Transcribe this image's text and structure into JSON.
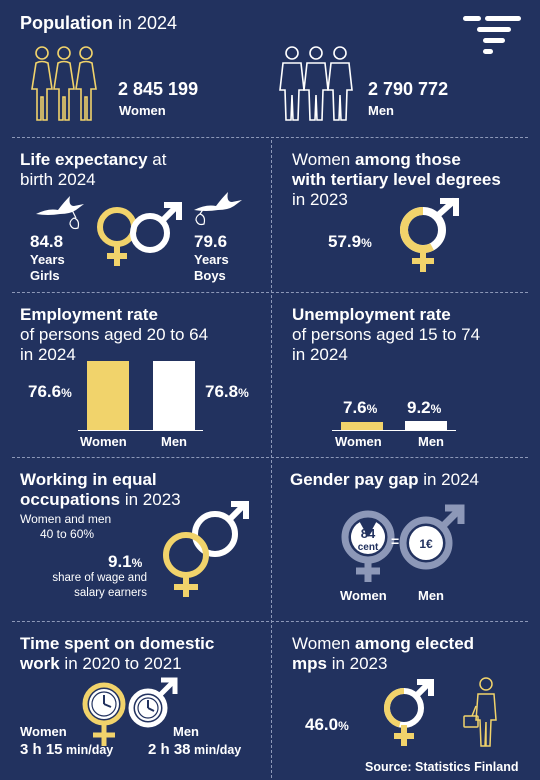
{
  "colors": {
    "background": "#22325f",
    "yellow": "#f1d36b",
    "white": "#ffffff",
    "grey": "#8d98b8"
  },
  "logo": {
    "icon": "statistics-finland-logo-icon"
  },
  "population": {
    "title_bold": "Population",
    "title_rest": " in 2024",
    "women_value": "2 845 199",
    "women_label": "Women",
    "men_value": "2 790 772",
    "men_label": "Men"
  },
  "life_expectancy": {
    "title_bold": "Life expectancy",
    "title_rest1": " at",
    "title_line2": "birth  2024",
    "girls_value": "84.8",
    "girls_unit": "Years",
    "girls_label": "Girls",
    "boys_value": "79.6",
    "boys_unit": "Years",
    "boys_label": "Boys"
  },
  "tertiary": {
    "title_pre": "Women ",
    "title_bold1": "among those",
    "title_bold2": "with tertiary level degrees",
    "title_line3": "in 2023",
    "value": "57.9",
    "unit": "%",
    "share": 0.579
  },
  "employment": {
    "title_bold": "Employment rate",
    "title_line2": "of persons aged 20 to 64",
    "title_line3": "in 2024",
    "women_value": "76.6",
    "men_value": "76.8",
    "unit": "%",
    "women_label": "Women",
    "men_label": "Men"
  },
  "unemployment": {
    "title_bold": "Unemployment rate",
    "title_line2": "of persons aged 15 to 74",
    "title_line3": "in 2024",
    "women_value": "7.6",
    "men_value": "9.2",
    "unit": "%",
    "women_label": "Women",
    "men_label": "Men"
  },
  "equal_occupations": {
    "title_bold1": "Working in equal",
    "title_bold2": "occupations",
    "title_rest": " in 2023",
    "sub1": "Women and men",
    "sub2": "40 to 60%",
    "value": "9.1",
    "unit": "%",
    "desc1": "share of wage and",
    "desc2": "salary earners"
  },
  "pay_gap": {
    "title_bold": "Gender pay gap",
    "title_rest": " in 2024",
    "women_amount": "84",
    "women_unit": "cent",
    "equals": "=",
    "men_amount": "1€",
    "women_label": "Women",
    "men_label": "Men",
    "women_share": 0.84
  },
  "domestic": {
    "title_bold1": "Time spent on domestic",
    "title_bold2": "work",
    "title_rest": " in 2020 to 2021",
    "women_label": "Women",
    "women_value": "3 h 15",
    "women_unit": " min/day",
    "men_label": "Men",
    "men_value": "2 h 38",
    "men_unit": " min/day"
  },
  "elected": {
    "title_pre": "Women ",
    "title_bold1": "among elected",
    "title_line2": "mps",
    "title_rest": " in 2023",
    "value": "46.0",
    "unit": "%",
    "share": 0.46
  },
  "source": "Source: Statistics Finland"
}
